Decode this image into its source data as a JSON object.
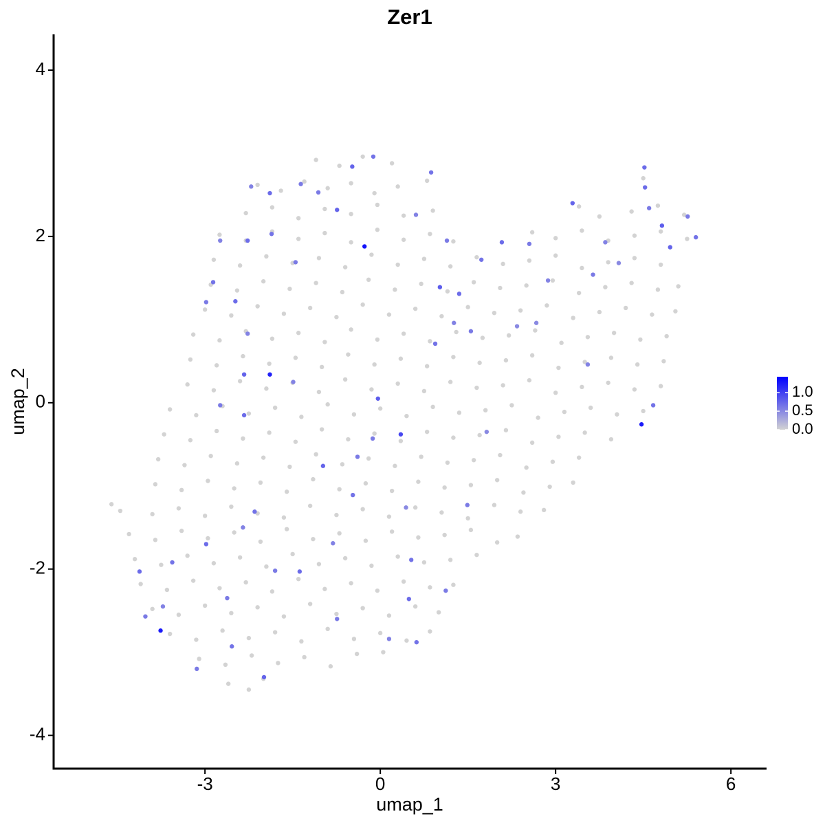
{
  "chart_data": {
    "type": "scatter",
    "title": "Zer1",
    "xlabel": "umap_1",
    "ylabel": "umap_2",
    "xlim": [
      -5.59,
      6.61
    ],
    "ylim": [
      -4.4,
      4.43
    ],
    "xticks": [
      -3,
      0,
      3,
      6
    ],
    "yticks": [
      -4,
      -2,
      0,
      2,
      4
    ],
    "color_low": "#d3d3d3",
    "color_high": "#0000ff",
    "clim": [
      0,
      1.43
    ],
    "cticks": [
      {
        "value": 0,
        "label": "0.0"
      },
      {
        "value": 0.5,
        "label": "0.5"
      },
      {
        "value": 1,
        "label": "1.0"
      }
    ],
    "x": [
      -1.1,
      -0.7,
      -0.3,
      0.2,
      -2.1,
      -1.7,
      -1.3,
      -0.9,
      -0.5,
      -0.1,
      0.3,
      0.8,
      4.5,
      -2.3,
      -1.85,
      -1.4,
      -0.95,
      -0.5,
      -0.05,
      0.4,
      0.9,
      3.4,
      3.75,
      4.3,
      4.75,
      5.2,
      -2.75,
      -2.3,
      -1.85,
      -1.4,
      -0.95,
      -0.5,
      -0.05,
      0.4,
      0.85,
      1.25,
      2.6,
      3.0,
      3.45,
      3.9,
      4.35,
      4.8,
      5.25,
      -2.85,
      -2.4,
      -1.95,
      -1.5,
      -1.05,
      -0.6,
      -0.15,
      0.3,
      0.75,
      1.2,
      1.65,
      2.1,
      2.55,
      3.0,
      3.45,
      3.9,
      4.35,
      4.8,
      -2.9,
      -2.45,
      -2.0,
      -1.55,
      -1.1,
      -0.65,
      -0.2,
      0.25,
      0.7,
      1.15,
      1.6,
      2.05,
      2.5,
      2.95,
      3.4,
      3.85,
      4.3,
      4.75,
      5.1,
      -3.0,
      -2.55,
      -2.1,
      -1.65,
      -1.2,
      -0.75,
      -0.3,
      0.15,
      0.6,
      1.05,
      1.5,
      1.95,
      2.4,
      2.85,
      3.3,
      3.75,
      4.2,
      4.65,
      5.05,
      -3.2,
      -2.75,
      -2.3,
      -1.85,
      -1.4,
      -0.95,
      -0.5,
      -0.05,
      0.4,
      0.85,
      1.3,
      1.75,
      2.2,
      2.65,
      3.1,
      3.55,
      4.0,
      4.45,
      4.9,
      -3.25,
      -2.8,
      -2.35,
      -1.9,
      -1.45,
      -1.0,
      -0.55,
      -0.1,
      0.35,
      0.8,
      1.25,
      1.7,
      2.15,
      2.6,
      3.05,
      3.5,
      3.95,
      4.4,
      4.85,
      -3.3,
      -2.85,
      -2.4,
      -1.95,
      -1.5,
      -1.05,
      -0.6,
      -0.15,
      0.3,
      0.75,
      1.2,
      1.65,
      2.1,
      2.55,
      3.0,
      3.45,
      3.9,
      4.35,
      4.8,
      -3.6,
      -3.15,
      -2.7,
      -2.25,
      -1.8,
      -1.35,
      -0.9,
      -0.45,
      0.0,
      0.45,
      0.9,
      1.35,
      1.8,
      2.25,
      2.7,
      3.15,
      3.6,
      4.05,
      4.5,
      -3.7,
      -3.25,
      -2.8,
      -2.35,
      -1.9,
      -1.45,
      -1.0,
      -0.55,
      -0.1,
      0.35,
      0.8,
      1.25,
      1.7,
      2.15,
      2.6,
      3.05,
      3.5,
      3.95,
      -3.8,
      -3.35,
      -2.9,
      -2.45,
      -2.0,
      -1.55,
      -1.1,
      -0.65,
      -0.2,
      0.25,
      0.7,
      1.15,
      1.6,
      2.05,
      2.5,
      2.95,
      3.4,
      -3.85,
      -3.4,
      -2.95,
      -2.5,
      -2.05,
      -1.6,
      -1.15,
      -0.7,
      -0.25,
      0.2,
      0.65,
      1.1,
      1.55,
      2.0,
      2.45,
      2.9,
      3.3,
      -4.6,
      -4.45,
      -3.9,
      -3.45,
      -3.0,
      -2.55,
      -2.1,
      -1.65,
      -1.2,
      -0.75,
      -0.3,
      0.15,
      0.6,
      1.05,
      1.5,
      1.95,
      2.4,
      2.8,
      -4.3,
      -3.85,
      -3.4,
      -2.95,
      -2.5,
      -2.05,
      -1.6,
      -1.15,
      -0.7,
      -0.25,
      0.2,
      0.65,
      1.1,
      1.55,
      2.0,
      2.35,
      -4.2,
      -3.75,
      -3.3,
      -2.85,
      -2.4,
      -1.95,
      -1.5,
      -1.05,
      -0.6,
      -0.15,
      0.3,
      0.75,
      1.2,
      1.65,
      -4.1,
      -3.65,
      -3.2,
      -2.75,
      -2.3,
      -1.85,
      -1.4,
      -0.95,
      -0.5,
      -0.05,
      0.4,
      0.85,
      1.25,
      -3.9,
      -3.45,
      -3.0,
      -2.55,
      -2.1,
      -1.65,
      -1.2,
      -0.75,
      -0.3,
      0.15,
      0.6,
      1.0,
      -3.6,
      -3.15,
      -2.7,
      -2.25,
      -1.8,
      -1.35,
      -0.9,
      -0.45,
      0.0,
      0.45,
      0.85,
      -3.1,
      -2.65,
      -2.2,
      -1.75,
      -1.3,
      -0.85,
      -0.4,
      0.05,
      -2.6,
      -2.25,
      -2.0,
      -0.27,
      -1.89,
      4.47,
      -3.76,
      0.35,
      -1.89,
      -1.36,
      -0.74,
      0.61,
      0.87,
      1.14,
      1.02,
      1.35,
      1.26,
      0.94,
      1.55,
      2.34,
      1.73,
      2.08,
      2.87,
      3.29,
      3.64,
      4.08,
      4.53,
      4.82,
      4.96,
      5.4,
      4.52,
      4.6,
      -2.74,
      -2.86,
      -2.98,
      -2.48,
      -2.27,
      -2.33,
      -2.74,
      -2.33,
      -1.49,
      -0.98,
      -0.39,
      -0.47,
      -0.04,
      -0.13,
      0.44,
      0.53,
      1.12,
      0.49,
      0.15,
      -0.74,
      -1.99,
      -2.54,
      -3.14,
      -3.72,
      -4.12,
      -4.02,
      -3.56,
      -2.98,
      -2.62,
      -2.35,
      -2.15,
      -1.8,
      -1.38,
      -0.81,
      0.62,
      1.49,
      1.82,
      -1.45,
      -1.86,
      -2.27,
      -2.21,
      -0.48,
      -1.06,
      -0.12,
      5.26,
      3.85,
      2.55,
      2.67,
      3.55,
      4.67
    ],
    "y": [
      2.92,
      2.85,
      2.96,
      2.88,
      2.62,
      2.55,
      2.66,
      2.58,
      2.64,
      2.52,
      2.6,
      2.67,
      2.7,
      2.28,
      2.35,
      2.22,
      2.33,
      2.27,
      2.38,
      2.25,
      2.31,
      2.36,
      2.24,
      2.3,
      2.37,
      2.26,
      2.02,
      1.95,
      2.06,
      1.97,
      2.04,
      1.93,
      2.08,
      1.96,
      2.03,
      1.94,
      2.05,
      1.98,
      2.07,
      1.95,
      2.01,
      2.06,
      1.97,
      1.72,
      1.65,
      1.76,
      1.68,
      1.74,
      1.63,
      1.78,
      1.66,
      1.73,
      1.64,
      1.75,
      1.67,
      1.71,
      1.77,
      1.62,
      1.69,
      1.74,
      1.66,
      1.42,
      1.35,
      1.46,
      1.37,
      1.44,
      1.33,
      1.48,
      1.36,
      1.43,
      1.34,
      1.45,
      1.38,
      1.41,
      1.47,
      1.32,
      1.39,
      1.44,
      1.36,
      1.4,
      1.12,
      1.05,
      1.16,
      1.07,
      1.14,
      1.03,
      1.18,
      1.06,
      1.13,
      1.04,
      1.15,
      1.08,
      1.11,
      1.17,
      1.02,
      1.09,
      1.14,
      1.06,
      1.1,
      0.82,
      0.75,
      0.86,
      0.77,
      0.84,
      0.73,
      0.88,
      0.76,
      0.83,
      0.74,
      0.85,
      0.78,
      0.81,
      0.87,
      0.72,
      0.79,
      0.84,
      0.76,
      0.8,
      0.52,
      0.45,
      0.56,
      0.47,
      0.54,
      0.43,
      0.58,
      0.46,
      0.53,
      0.44,
      0.55,
      0.48,
      0.51,
      0.57,
      0.42,
      0.49,
      0.54,
      0.46,
      0.5,
      0.22,
      0.15,
      0.26,
      0.17,
      0.24,
      0.13,
      0.28,
      0.16,
      0.23,
      0.14,
      0.25,
      0.18,
      0.21,
      0.27,
      0.12,
      0.19,
      0.24,
      0.16,
      0.2,
      -0.08,
      -0.15,
      -0.04,
      -0.13,
      -0.06,
      -0.17,
      -0.02,
      -0.14,
      -0.07,
      -0.16,
      -0.05,
      -0.12,
      -0.09,
      -0.03,
      -0.18,
      -0.11,
      -0.06,
      -0.14,
      -0.1,
      -0.38,
      -0.45,
      -0.34,
      -0.43,
      -0.36,
      -0.47,
      -0.32,
      -0.44,
      -0.37,
      -0.46,
      -0.35,
      -0.42,
      -0.39,
      -0.33,
      -0.48,
      -0.41,
      -0.36,
      -0.44,
      -0.68,
      -0.75,
      -0.64,
      -0.73,
      -0.66,
      -0.77,
      -0.62,
      -0.74,
      -0.67,
      -0.76,
      -0.65,
      -0.72,
      -0.69,
      -0.63,
      -0.78,
      -0.71,
      -0.66,
      -0.98,
      -1.05,
      -0.94,
      -1.03,
      -0.96,
      -1.07,
      -0.92,
      -1.04,
      -0.97,
      -1.06,
      -0.95,
      -1.02,
      -0.99,
      -0.93,
      -1.08,
      -1.01,
      -0.96,
      -1.22,
      -1.3,
      -1.34,
      -1.27,
      -1.36,
      -1.25,
      -1.33,
      -1.38,
      -1.24,
      -1.35,
      -1.28,
      -1.37,
      -1.26,
      -1.32,
      -1.39,
      -1.23,
      -1.31,
      -1.29,
      -1.58,
      -1.65,
      -1.54,
      -1.63,
      -1.56,
      -1.67,
      -1.52,
      -1.64,
      -1.57,
      -1.66,
      -1.55,
      -1.62,
      -1.59,
      -1.53,
      -1.68,
      -1.61,
      -1.88,
      -1.95,
      -1.84,
      -1.93,
      -1.86,
      -1.97,
      -1.82,
      -1.94,
      -1.87,
      -1.96,
      -1.85,
      -1.92,
      -1.89,
      -1.83,
      -2.18,
      -2.25,
      -2.14,
      -2.23,
      -2.16,
      -2.27,
      -2.12,
      -2.24,
      -2.17,
      -2.26,
      -2.15,
      -2.22,
      -2.19,
      -2.48,
      -2.55,
      -2.44,
      -2.53,
      -2.46,
      -2.57,
      -2.42,
      -2.54,
      -2.47,
      -2.56,
      -2.45,
      -2.52,
      -2.78,
      -2.85,
      -2.74,
      -2.83,
      -2.76,
      -2.87,
      -2.72,
      -2.84,
      -2.77,
      -2.86,
      -2.75,
      -3.08,
      -3.15,
      -3.04,
      -3.13,
      -3.06,
      -3.17,
      -3.02,
      -3.0,
      -3.38,
      -3.45,
      -3.32,
      1.88,
      0.34,
      -0.26,
      -2.74,
      -0.38,
      2.52,
      2.63,
      2.32,
      2.26,
      2.77,
      1.95,
      1.39,
      1.31,
      0.96,
      0.71,
      0.86,
      0.92,
      1.72,
      1.93,
      1.47,
      2.4,
      1.54,
      1.68,
      2.59,
      2.13,
      1.87,
      1.99,
      2.83,
      2.34,
      1.95,
      1.45,
      1.21,
      1.22,
      0.83,
      0.34,
      -0.03,
      -0.15,
      0.25,
      -0.76,
      -0.65,
      -1.11,
      0.05,
      -0.43,
      -1.26,
      -1.89,
      -2.26,
      -2.36,
      -2.84,
      -2.6,
      -3.3,
      -2.93,
      -3.2,
      -2.45,
      -2.03,
      -2.57,
      -1.92,
      -1.7,
      -2.35,
      -1.5,
      -1.31,
      -2.02,
      -2.03,
      -1.69,
      -2.88,
      -1.23,
      -0.35,
      1.69,
      2.03,
      1.95,
      2.6,
      2.84,
      2.53,
      2.96,
      2.24,
      1.93,
      1.91,
      0.96,
      0.46,
      -0.03
    ],
    "expression": [
      0,
      0,
      0,
      0,
      0,
      0,
      0,
      0,
      0,
      0,
      0,
      0,
      0,
      0,
      0,
      0,
      0,
      0,
      0,
      0,
      0,
      0,
      0,
      0,
      0,
      0,
      0,
      0,
      0,
      0,
      0,
      0,
      0,
      0,
      0,
      0,
      0,
      0,
      0,
      0,
      0,
      0,
      0,
      0,
      0,
      0,
      0,
      0,
      0,
      0,
      0,
      0,
      0,
      0,
      0,
      0,
      0,
      0,
      0,
      0,
      0,
      0,
      0,
      0,
      0,
      0,
      0,
      0,
      0,
      0,
      0,
      0,
      0,
      0,
      0,
      0,
      0,
      0,
      0,
      0,
      0,
      0,
      0,
      0,
      0,
      0,
      0,
      0,
      0,
      0,
      0,
      0,
      0,
      0,
      0,
      0,
      0,
      0,
      0,
      0,
      0,
      0,
      0,
      0,
      0,
      0,
      0,
      0,
      0,
      0,
      0,
      0,
      0,
      0,
      0,
      0,
      0,
      0,
      0,
      0,
      0,
      0,
      0,
      0,
      0,
      0,
      0,
      0,
      0,
      0,
      0,
      0,
      0,
      0,
      0,
      0,
      0,
      0,
      0,
      0,
      0,
      0,
      0,
      0,
      0,
      0,
      0,
      0,
      0,
      0,
      0,
      0,
      0,
      0,
      0,
      0,
      0,
      0,
      0,
      0,
      0,
      0,
      0,
      0,
      0,
      0,
      0,
      0,
      0,
      0,
      0,
      0,
      0,
      0,
      0,
      0,
      0,
      0,
      0,
      0,
      0,
      0,
      0,
      0,
      0,
      0,
      0,
      0,
      0,
      0,
      0,
      0,
      0,
      0,
      0,
      0,
      0,
      0,
      0,
      0,
      0,
      0,
      0,
      0,
      0,
      0,
      0,
      0,
      0,
      0,
      0,
      0,
      0,
      0,
      0,
      0,
      0,
      0,
      0,
      0,
      0,
      0,
      0,
      0,
      0,
      0,
      0,
      0,
      0,
      0,
      0,
      0,
      0,
      0,
      0,
      0,
      0,
      0,
      0,
      0,
      0,
      0,
      0,
      0,
      0,
      0,
      0,
      0,
      0,
      0,
      0,
      0,
      0,
      0,
      0,
      0,
      0,
      0,
      0,
      0,
      0,
      0,
      0,
      0,
      0,
      0,
      0,
      0,
      0,
      0,
      0,
      0,
      0,
      0,
      0,
      0,
      0,
      0,
      0,
      0,
      0,
      0,
      0,
      0,
      0,
      0,
      0,
      0,
      0,
      0,
      0,
      0,
      0,
      0,
      0,
      0,
      0,
      0,
      0,
      0,
      0,
      0,
      0,
      0,
      0,
      0,
      0,
      0,
      0,
      0,
      0,
      0,
      0,
      0,
      0,
      0,
      0,
      0,
      0,
      0,
      0,
      0,
      1.3,
      1.2,
      1.25,
      1.25,
      0.95,
      0.7,
      0.6,
      0.75,
      0.55,
      0.65,
      0.6,
      0.8,
      0.7,
      0.55,
      0.65,
      0.6,
      0.5,
      0.65,
      0.7,
      0.55,
      0.75,
      0.6,
      0.5,
      0.7,
      0.8,
      0.75,
      0.65,
      0.7,
      0.6,
      0.55,
      0.65,
      0.6,
      0.7,
      0.55,
      0.75,
      0.6,
      0.7,
      0.55,
      0.75,
      0.6,
      0.65,
      0.8,
      0.6,
      0.5,
      0.65,
      0.6,
      0.7,
      0.55,
      0.6,
      0.75,
      0.65,
      0.6,
      0.55,
      0.7,
      0.6,
      0.65,
      0.7,
      0.6,
      0.55,
      0.65,
      0.6,
      0.7,
      0.55,
      0.65,
      0.6,
      0.5,
      0.6,
      0.65,
      0.7,
      0.55,
      0.75,
      0.6,
      0.65,
      0.6,
      0.55,
      0.6,
      0.5,
      0.55,
      0.65
    ]
  }
}
